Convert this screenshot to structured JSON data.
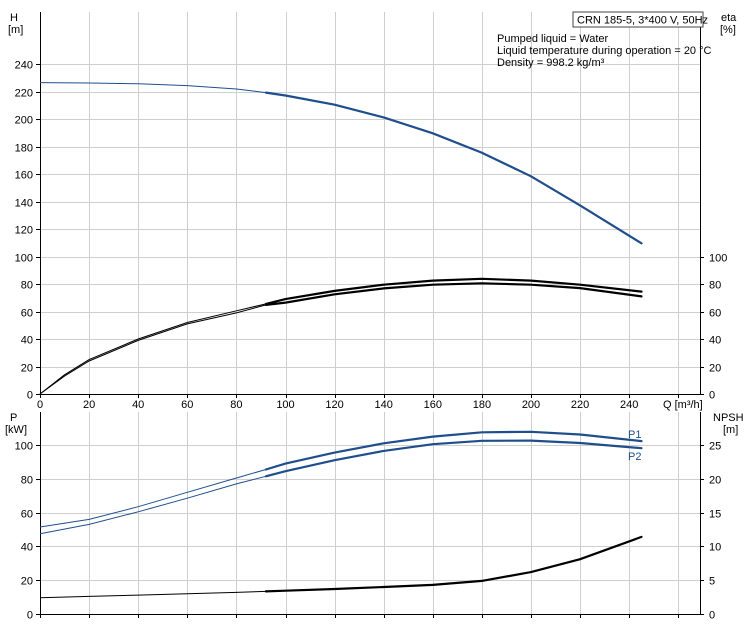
{
  "chart_data": [
    {
      "type": "line",
      "panel": "top",
      "title": "CRN 185-5, 3*400 V, 50Hz",
      "annotations": [
        "Pumped liquid = Water",
        "Liquid temperature during operation = 20 °C",
        "Density = 998.2 kg/m³"
      ],
      "left_axis": {
        "label": "H",
        "unit": "[m]",
        "range": [
          0,
          240
        ],
        "ticks": [
          0,
          20,
          40,
          60,
          80,
          100,
          120,
          140,
          160,
          180,
          200,
          220,
          240
        ]
      },
      "right_axis": {
        "label": "eta",
        "unit": "[%]",
        "range": [
          0,
          100
        ],
        "ticks": [
          0,
          20,
          40,
          60,
          80,
          100
        ]
      },
      "x_axis": {
        "label": "Q [m³/h]",
        "range": [
          0,
          250
        ],
        "ticks": [
          0,
          20,
          40,
          60,
          80,
          100,
          120,
          140,
          160,
          180,
          200,
          220,
          240
        ]
      },
      "grid": true,
      "series": [
        {
          "id": "head",
          "axis": "left",
          "color": "#1f4e8c",
          "thin_until_x": 92,
          "x": [
            0,
            20,
            40,
            60,
            80,
            92,
            100,
            120,
            140,
            160,
            180,
            200,
            220,
            245
          ],
          "y": [
            226.5,
            226.2,
            225.6,
            224.3,
            221.8,
            219.2,
            217.1,
            210.4,
            201.2,
            189.6,
            175.5,
            158.3,
            137.2,
            109.6
          ]
        },
        {
          "id": "eta-upper",
          "axis": "right",
          "color": "#000000",
          "thin_until_x": 92,
          "x": [
            0,
            10,
            20,
            40,
            60,
            80,
            92,
            100,
            120,
            140,
            160,
            180,
            200,
            220,
            245
          ],
          "y": [
            0,
            14,
            25,
            40,
            52,
            60.5,
            65.5,
            69,
            75,
            79.5,
            82.5,
            83.8,
            82.5,
            79.5,
            74.5
          ]
        },
        {
          "id": "eta-lower",
          "axis": "right",
          "color": "#000000",
          "thin_until_x": 92,
          "x": [
            0,
            10,
            20,
            40,
            60,
            80,
            92,
            100,
            120,
            140,
            160,
            180,
            200,
            220,
            245
          ],
          "y": [
            0,
            13,
            24,
            39,
            51,
            59,
            64.8,
            66.5,
            72.5,
            76.8,
            79.5,
            80.5,
            79.5,
            77,
            71
          ]
        }
      ]
    },
    {
      "type": "line",
      "panel": "bottom",
      "left_axis": {
        "label": "P",
        "unit": "[kW]",
        "range": [
          0,
          115
        ],
        "ticks": [
          0,
          20,
          40,
          60,
          80,
          100
        ]
      },
      "right_axis": {
        "label": "NPSH",
        "unit": "[m]",
        "range": [
          0,
          28.75
        ],
        "ticks": [
          0,
          5,
          10,
          15,
          20,
          25
        ]
      },
      "x_axis": {
        "range": [
          0,
          250
        ],
        "ticks": [
          0,
          20,
          40,
          60,
          80,
          100,
          120,
          140,
          160,
          180,
          200,
          220,
          240
        ]
      },
      "grid": true,
      "series": [
        {
          "id": "p1",
          "name": "P1",
          "axis": "left",
          "color": "#1f4e8c",
          "thin_until_x": 92,
          "x": [
            0,
            20,
            40,
            60,
            80,
            92,
            100,
            120,
            140,
            160,
            180,
            200,
            220,
            245
          ],
          "y": [
            51.5,
            56,
            63.5,
            72,
            80.5,
            85.5,
            89,
            95.5,
            101,
            105,
            107.5,
            107.8,
            106.2,
            102.3
          ]
        },
        {
          "id": "p2",
          "name": "P2",
          "axis": "left",
          "color": "#1f4e8c",
          "thin_until_x": 92,
          "x": [
            0,
            20,
            40,
            60,
            80,
            92,
            100,
            120,
            140,
            160,
            180,
            200,
            220,
            245
          ],
          "y": [
            47.5,
            53,
            60.5,
            68.5,
            77,
            81.5,
            84.5,
            91,
            96.5,
            100.5,
            102.5,
            102.6,
            101.2,
            98.1
          ]
        },
        {
          "id": "npsh",
          "axis": "right",
          "color": "#000000",
          "thin_until_x": 92,
          "x": [
            0,
            20,
            40,
            60,
            80,
            92,
            100,
            120,
            140,
            160,
            180,
            200,
            220,
            245
          ],
          "y": [
            2.4,
            2.6,
            2.8,
            3.0,
            3.2,
            3.35,
            3.45,
            3.7,
            4.0,
            4.3,
            4.9,
            6.2,
            8.1,
            11.4
          ]
        }
      ]
    }
  ]
}
